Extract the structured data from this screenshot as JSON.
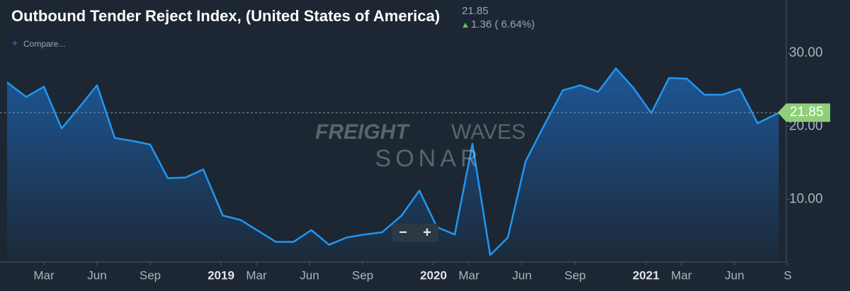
{
  "header": {
    "title": "Outbound Tender Reject Index, (United States of America)",
    "value": 21.85,
    "change": "1.36 ( 6.64%)",
    "compare": "Compare..."
  },
  "watermark": {
    "brand_bold": "FREIGHT",
    "brand_light": "WAVES",
    "product": "SONAR"
  },
  "zoom": {
    "out": "−",
    "in": "+"
  },
  "chart_data": {
    "type": "line",
    "color": "#2196f3",
    "x": [
      -0.08,
      1.0,
      2.0,
      3.0,
      4.0,
      5.0,
      6.0,
      7.0,
      8.0,
      9.0,
      10.0,
      11.0,
      12.1,
      13.1,
      14.1,
      15.1,
      16.1,
      17.1,
      18.1,
      19.1,
      20.1,
      21.1,
      22.2,
      23.2,
      24.2,
      25.2,
      26.2,
      27.2,
      28.2,
      29.2,
      30.2,
      31.3,
      32.3,
      33.3,
      34.3,
      35.3,
      36.3,
      37.3,
      38.3,
      39.3,
      40.3,
      41.3,
      42.3,
      43.5
    ],
    "values": [
      26.0,
      24.0,
      25.4,
      19.7,
      22.6,
      25.6,
      18.4,
      18.0,
      17.5,
      12.9,
      13.0,
      14.1,
      7.8,
      7.2,
      5.7,
      4.2,
      4.2,
      5.8,
      3.8,
      4.8,
      5.2,
      5.5,
      7.8,
      11.2,
      6.2,
      5.2,
      17.6,
      2.4,
      4.8,
      15.2,
      19.9,
      24.9,
      25.6,
      24.7,
      27.9,
      25.2,
      21.8,
      26.6,
      26.5,
      24.3,
      24.3,
      25.1,
      20.4,
      21.85
    ],
    "last_value": 21.85,
    "xlim": [
      -0.48,
      43.72
    ],
    "xticks": [
      {
        "value": 2,
        "label": "Mar"
      },
      {
        "value": 5,
        "label": "Jun"
      },
      {
        "value": 8,
        "label": "Sep"
      },
      {
        "value": 12,
        "label": "2019"
      },
      {
        "value": 14,
        "label": "Mar"
      },
      {
        "value": 17,
        "label": "Jun"
      },
      {
        "value": 20,
        "label": "Sep"
      },
      {
        "value": 24,
        "label": "2020"
      },
      {
        "value": 26,
        "label": "Mar"
      },
      {
        "value": 29,
        "label": "Jun"
      },
      {
        "value": 32,
        "label": "Sep"
      },
      {
        "value": 36,
        "label": "2021"
      },
      {
        "value": 38,
        "label": "Mar"
      },
      {
        "value": 41,
        "label": "Jun"
      },
      {
        "value": 44,
        "label": "S"
      }
    ],
    "ylim": [
      1.45,
      37.25
    ],
    "yticks": [
      {
        "value": 10,
        "label": "10.00"
      },
      {
        "value": 20,
        "label": "20.00"
      },
      {
        "value": 30,
        "label": "30.00"
      }
    ]
  }
}
